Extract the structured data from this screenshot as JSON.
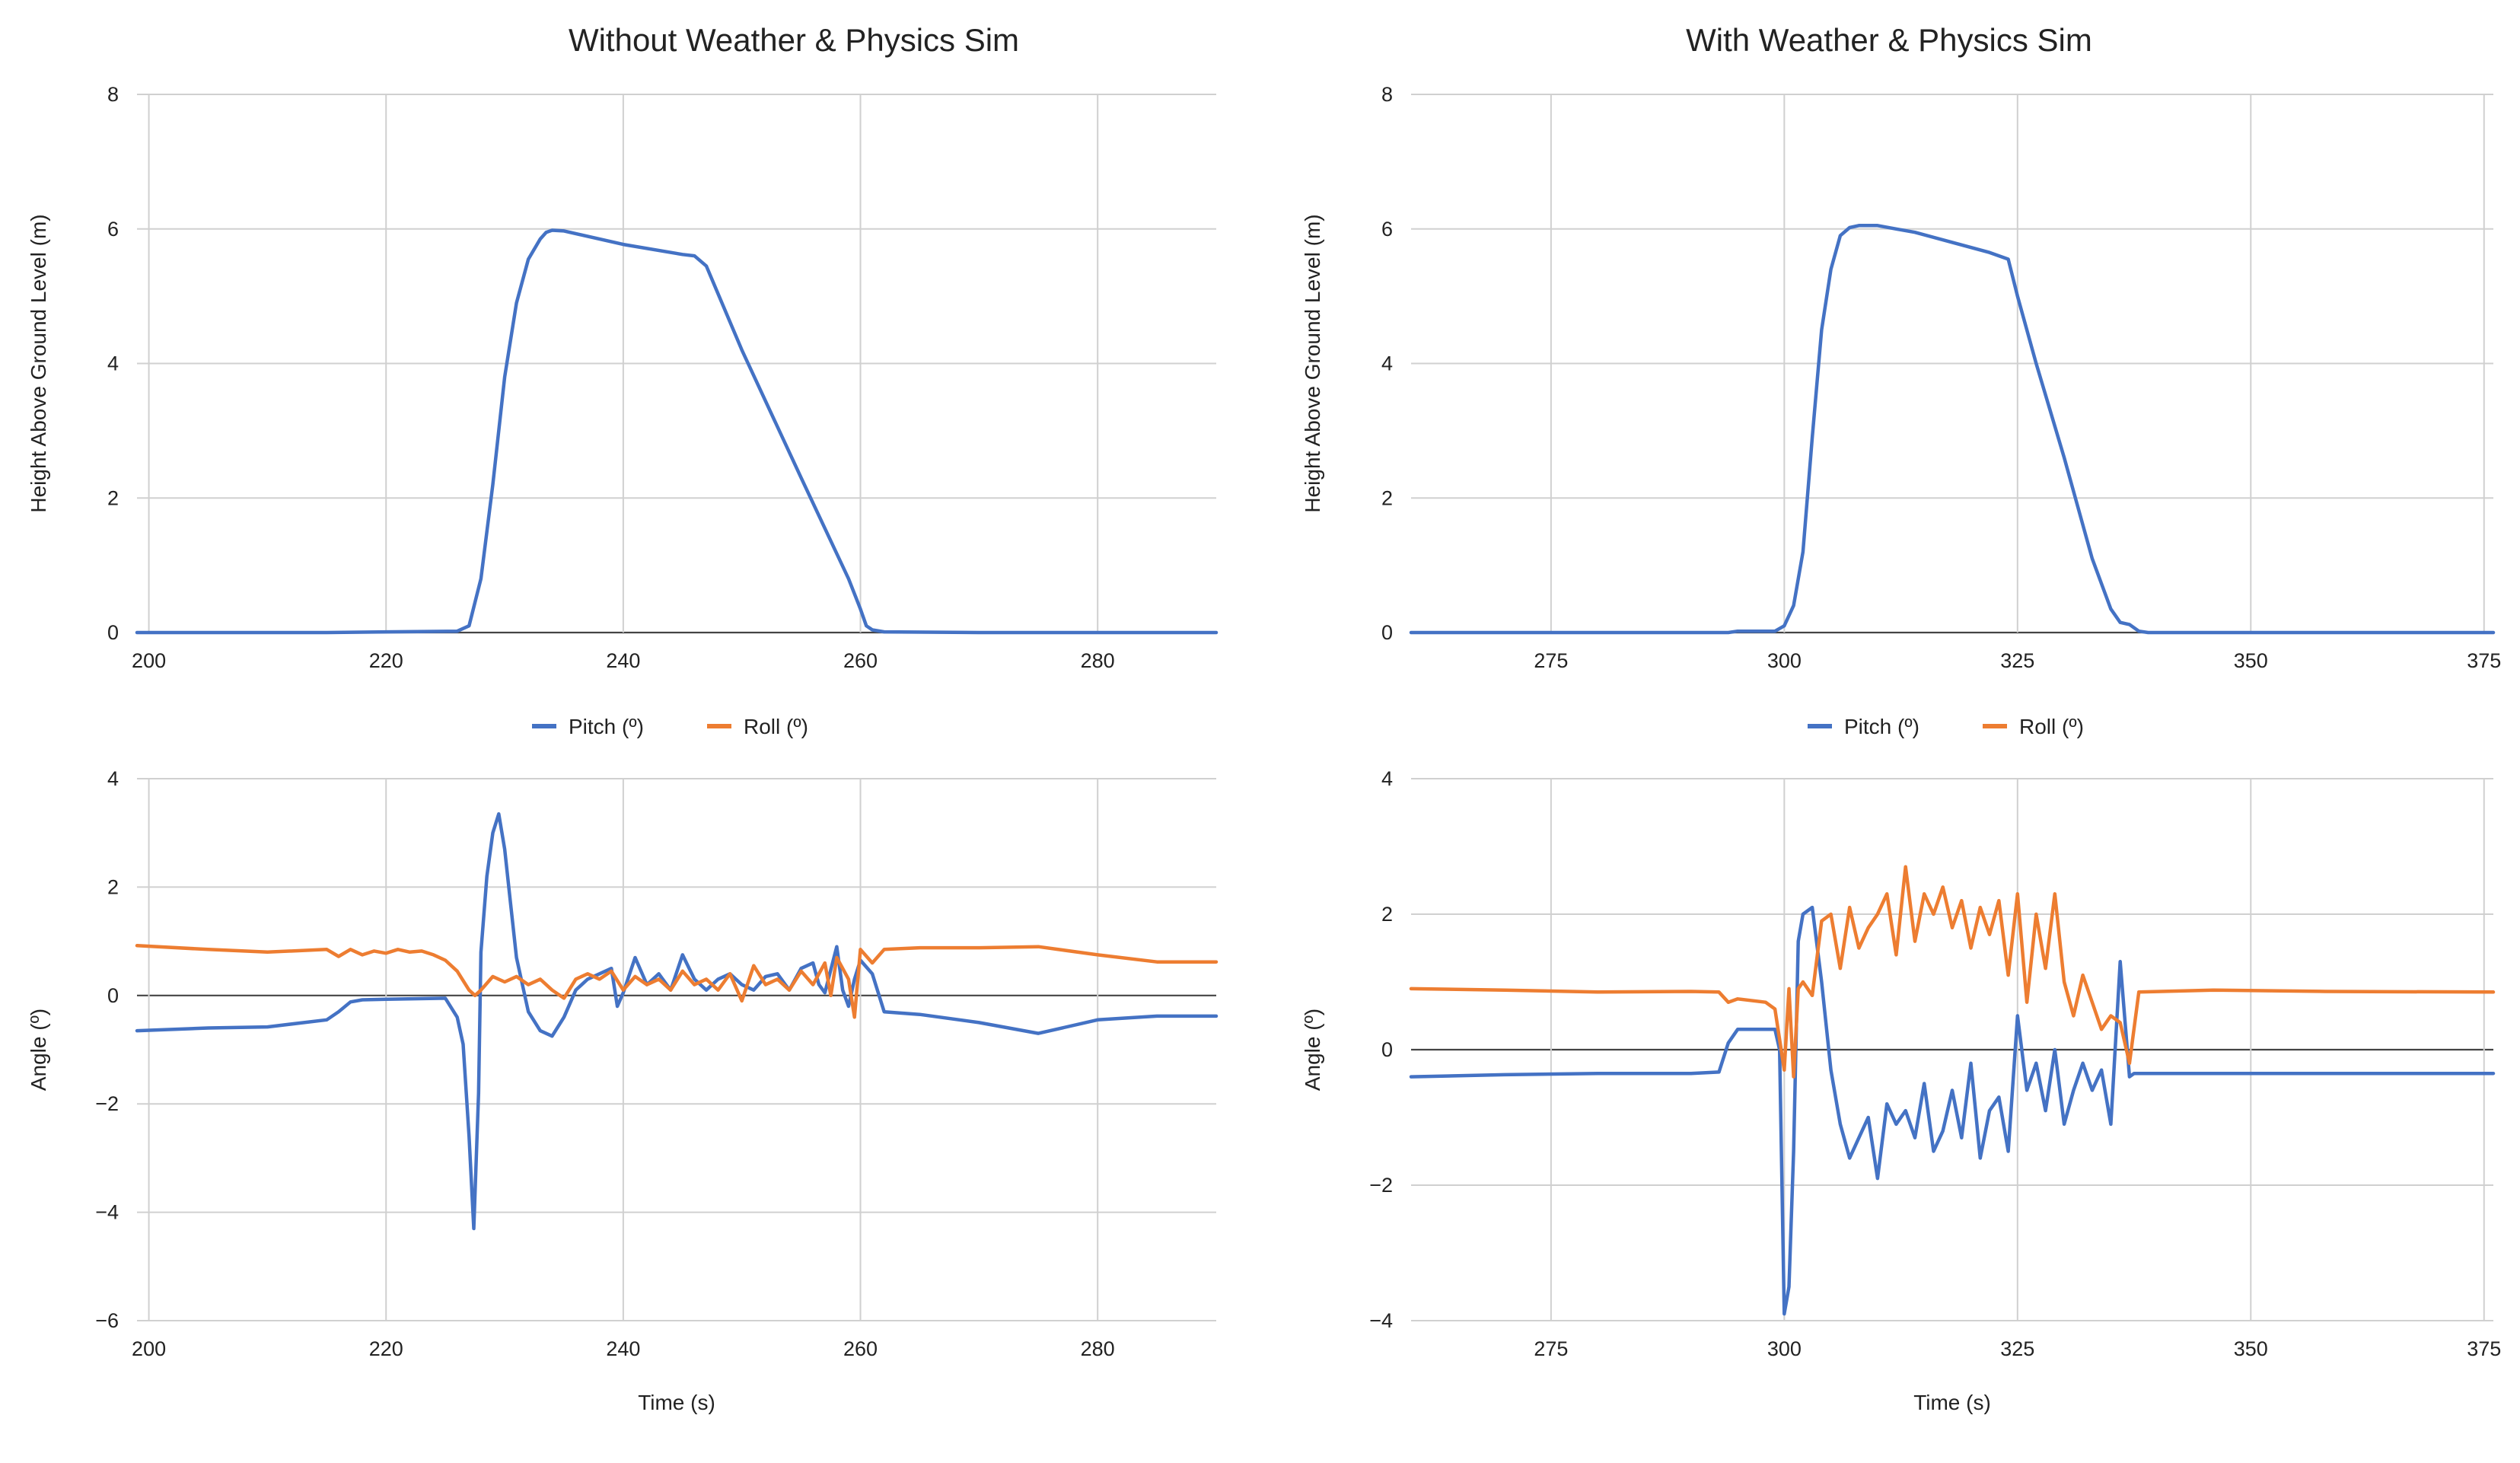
{
  "colors": {
    "pitch": "#4472C4",
    "roll": "#ED7D31",
    "height": "#4472C4",
    "grid": "#D0D0D0",
    "zero": "#444444"
  },
  "panels": [
    {
      "title": "Without Weather & Physics Sim"
    },
    {
      "title": "With Weather & Physics Sim"
    }
  ],
  "chart_data": [
    {
      "id": "height-without",
      "type": "line",
      "title": "Without Weather & Physics Sim",
      "xlabel": "",
      "ylabel": "Height Above Ground Level (m)",
      "xlim": [
        199,
        290
      ],
      "ylim": [
        0,
        8
      ],
      "xticks": [
        200,
        220,
        240,
        260,
        280
      ],
      "yticks": [
        0,
        2,
        4,
        6,
        8
      ],
      "grid": true,
      "series": [
        {
          "name": "Height",
          "color": "#4472C4",
          "x": [
            199,
            215,
            226,
            227,
            228,
            229,
            230,
            231,
            232,
            233,
            233.5,
            234,
            235,
            240,
            245,
            246,
            247,
            250,
            255,
            259,
            260,
            260.5,
            261,
            262,
            270,
            280,
            290
          ],
          "y": [
            0,
            0,
            0.02,
            0.1,
            0.8,
            2.2,
            3.8,
            4.9,
            5.55,
            5.85,
            5.95,
            5.98,
            5.97,
            5.77,
            5.62,
            5.6,
            5.45,
            4.2,
            2.3,
            0.8,
            0.35,
            0.1,
            0.04,
            0.01,
            0,
            0,
            0
          ]
        }
      ]
    },
    {
      "id": "height-with",
      "type": "line",
      "title": "With Weather & Physics Sim",
      "xlabel": "",
      "ylabel": "Height Above Ground Level (m)",
      "xlim": [
        260,
        376
      ],
      "ylim": [
        0,
        8
      ],
      "xticks": [
        275,
        300,
        325,
        350,
        375
      ],
      "yticks": [
        0,
        2,
        4,
        6,
        8
      ],
      "grid": true,
      "series": [
        {
          "name": "Height",
          "color": "#4472C4",
          "x": [
            260,
            294,
            295,
            299,
            300,
            301,
            302,
            303,
            304,
            305,
            306,
            307,
            308,
            310,
            312,
            314,
            318,
            322,
            324,
            325,
            327,
            330,
            333,
            335,
            336,
            337,
            338,
            339,
            345,
            376
          ],
          "y": [
            0,
            0,
            0.02,
            0.02,
            0.1,
            0.4,
            1.2,
            2.9,
            4.5,
            5.4,
            5.9,
            6.02,
            6.05,
            6.05,
            6.0,
            5.95,
            5.8,
            5.65,
            5.55,
            5.0,
            4.0,
            2.6,
            1.1,
            0.35,
            0.15,
            0.12,
            0.02,
            0,
            0,
            0
          ]
        }
      ]
    },
    {
      "id": "angle-without",
      "type": "line",
      "title": "",
      "xlabel": "Time (s)",
      "ylabel": "Angle (º)",
      "xlim": [
        199,
        290
      ],
      "ylim": [
        -6,
        4
      ],
      "xticks": [
        200,
        220,
        240,
        260,
        280
      ],
      "yticks": [
        -6,
        -4,
        -2,
        0,
        2,
        4
      ],
      "grid": true,
      "legend": [
        "Pitch (º)",
        "Roll (º)"
      ],
      "series": [
        {
          "name": "Pitch (º)",
          "color": "#4472C4",
          "x": [
            199,
            205,
            210,
            215,
            216,
            217,
            218,
            220,
            225,
            226,
            226.5,
            227,
            227.4,
            227.8,
            228,
            228.5,
            229,
            229.5,
            230,
            230.5,
            231,
            232,
            233,
            234,
            235,
            236,
            237,
            238,
            239,
            239.5,
            240,
            241,
            242,
            243,
            244,
            245,
            246,
            247,
            248,
            249,
            250,
            251,
            252,
            253,
            254,
            255,
            256,
            256.5,
            257,
            258,
            258.5,
            259,
            259.5,
            260,
            261,
            262,
            265,
            270,
            275,
            280,
            285,
            290
          ],
          "y": [
            -0.65,
            -0.6,
            -0.58,
            -0.45,
            -0.3,
            -0.12,
            -0.08,
            -0.07,
            -0.05,
            -0.4,
            -0.9,
            -2.6,
            -4.3,
            -1.8,
            0.8,
            2.2,
            3.0,
            3.35,
            2.7,
            1.7,
            0.7,
            -0.3,
            -0.65,
            -0.75,
            -0.4,
            0.1,
            0.3,
            0.4,
            0.5,
            -0.2,
            0.05,
            0.7,
            0.2,
            0.4,
            0.1,
            0.75,
            0.3,
            0.1,
            0.3,
            0.4,
            0.2,
            0.1,
            0.35,
            0.4,
            0.1,
            0.5,
            0.6,
            0.2,
            0.05,
            0.9,
            0.1,
            -0.2,
            0.3,
            0.65,
            0.4,
            -0.3,
            -0.35,
            -0.5,
            -0.7,
            -0.45,
            -0.38,
            -0.38
          ]
        },
        {
          "name": "Roll (º)",
          "color": "#ED7D31",
          "x": [
            199,
            205,
            210,
            215,
            216,
            217,
            218,
            219,
            220,
            221,
            222,
            223,
            224,
            225,
            226,
            227,
            227.5,
            228,
            229,
            230,
            231,
            232,
            233,
            234,
            235,
            236,
            237,
            238,
            239,
            240,
            241,
            242,
            243,
            244,
            245,
            246,
            247,
            248,
            249,
            250,
            251,
            252,
            253,
            254,
            255,
            256,
            257,
            257.5,
            258,
            259,
            259.5,
            260,
            261,
            262,
            265,
            270,
            275,
            280,
            285,
            290
          ],
          "y": [
            0.92,
            0.85,
            0.8,
            0.85,
            0.72,
            0.85,
            0.75,
            0.82,
            0.78,
            0.85,
            0.8,
            0.82,
            0.75,
            0.65,
            0.45,
            0.1,
            0.0,
            0.1,
            0.35,
            0.25,
            0.35,
            0.2,
            0.3,
            0.1,
            -0.05,
            0.3,
            0.4,
            0.3,
            0.45,
            0.1,
            0.35,
            0.2,
            0.3,
            0.1,
            0.45,
            0.2,
            0.3,
            0.1,
            0.4,
            -0.1,
            0.55,
            0.2,
            0.3,
            0.1,
            0.45,
            0.2,
            0.6,
            0.0,
            0.7,
            0.3,
            -0.4,
            0.85,
            0.6,
            0.85,
            0.88,
            0.88,
            0.9,
            0.75,
            0.62,
            0.62
          ]
        }
      ]
    },
    {
      "id": "angle-with",
      "type": "line",
      "title": "",
      "xlabel": "Time (s)",
      "ylabel": "Angle (º)",
      "xlim": [
        260,
        376
      ],
      "ylim": [
        -4,
        4
      ],
      "xticks": [
        275,
        300,
        325,
        350,
        375
      ],
      "yticks": [
        -4,
        -2,
        0,
        2,
        4
      ],
      "grid": true,
      "legend": [
        "Pitch (º)",
        "Roll (º)"
      ],
      "series": [
        {
          "name": "Pitch (º)",
          "color": "#4472C4",
          "x": [
            260,
            270,
            280,
            290,
            293,
            294,
            295,
            298,
            299,
            299.5,
            300,
            300.5,
            301,
            301.5,
            302,
            303,
            304,
            305,
            306,
            307,
            308,
            309,
            310,
            311,
            312,
            313,
            314,
            315,
            316,
            317,
            318,
            319,
            320,
            321,
            322,
            323,
            324,
            325,
            326,
            327,
            328,
            329,
            330,
            331,
            332,
            333,
            334,
            335,
            336,
            337,
            337.5,
            338,
            339,
            345,
            360,
            376
          ],
          "y": [
            -0.4,
            -0.37,
            -0.35,
            -0.35,
            -0.33,
            0.1,
            0.3,
            0.3,
            0.3,
            0.0,
            -3.9,
            -3.5,
            -1.5,
            1.6,
            2.0,
            2.1,
            1.0,
            -0.3,
            -1.1,
            -1.6,
            -1.3,
            -1.0,
            -1.9,
            -0.8,
            -1.1,
            -0.9,
            -1.3,
            -0.5,
            -1.5,
            -1.2,
            -0.6,
            -1.3,
            -0.2,
            -1.6,
            -0.9,
            -0.7,
            -1.5,
            0.5,
            -0.6,
            -0.2,
            -0.9,
            0.0,
            -1.1,
            -0.6,
            -0.2,
            -0.6,
            -0.3,
            -1.1,
            1.3,
            -0.4,
            -0.35,
            -0.35,
            -0.35,
            -0.35,
            -0.35,
            -0.35
          ]
        },
        {
          "name": "Roll (º)",
          "color": "#ED7D31",
          "x": [
            260,
            270,
            280,
            290,
            293,
            294,
            295,
            298,
            299,
            300,
            300.5,
            301,
            301.5,
            302,
            303,
            304,
            305,
            306,
            307,
            308,
            309,
            310,
            311,
            312,
            313,
            314,
            315,
            316,
            317,
            318,
            319,
            320,
            321,
            322,
            323,
            324,
            325,
            326,
            327,
            328,
            329,
            330,
            331,
            332,
            333,
            334,
            335,
            336,
            337,
            338,
            346,
            358,
            376
          ],
          "y": [
            0.9,
            0.88,
            0.85,
            0.86,
            0.85,
            0.7,
            0.75,
            0.7,
            0.6,
            -0.3,
            0.9,
            -0.4,
            0.9,
            1.0,
            0.8,
            1.9,
            2.0,
            1.2,
            2.1,
            1.5,
            1.8,
            2.0,
            2.3,
            1.4,
            2.7,
            1.6,
            2.3,
            2.0,
            2.4,
            1.8,
            2.2,
            1.5,
            2.1,
            1.7,
            2.2,
            1.1,
            2.3,
            0.7,
            2.0,
            1.2,
            2.3,
            1.0,
            0.5,
            1.1,
            0.7,
            0.3,
            0.5,
            0.4,
            -0.2,
            0.85,
            0.88,
            0.86,
            0.85
          ]
        }
      ]
    }
  ]
}
